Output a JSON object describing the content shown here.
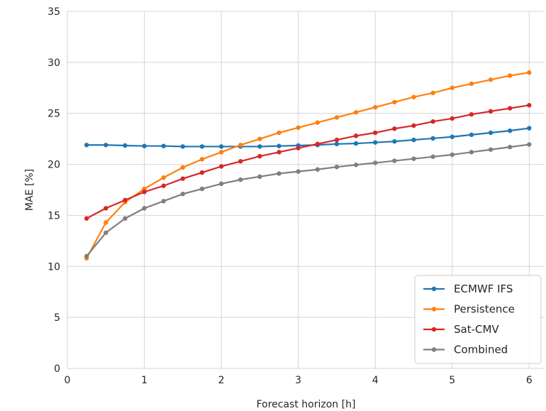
{
  "chart_data": {
    "type": "line",
    "title": "",
    "xlabel": "Forecast horizon [h]",
    "ylabel": "MAE [%]",
    "xlim": [
      0,
      6.2
    ],
    "ylim": [
      0,
      35
    ],
    "xticks": [
      0,
      1,
      2,
      3,
      4,
      5,
      6
    ],
    "yticks": [
      0,
      5,
      10,
      15,
      20,
      25,
      30,
      35
    ],
    "xtick_labels": [
      "0",
      "1",
      "2",
      "3",
      "4",
      "5",
      "6"
    ],
    "ytick_labels": [
      "0",
      "5",
      "10",
      "15",
      "20",
      "25",
      "30",
      "35"
    ],
    "grid": true,
    "legend_position": "bottom-right",
    "x": [
      0.25,
      0.5,
      0.75,
      1.0,
      1.25,
      1.5,
      1.75,
      2.0,
      2.25,
      2.5,
      2.75,
      3.0,
      3.25,
      3.5,
      3.75,
      4.0,
      4.25,
      4.5,
      4.75,
      5.0,
      5.25,
      5.5,
      5.75,
      6.0
    ],
    "series": [
      {
        "name": "ECMWF IFS",
        "color": "#1f77b4",
        "values": [
          21.9,
          21.9,
          21.85,
          21.8,
          21.8,
          21.75,
          21.75,
          21.75,
          21.75,
          21.75,
          21.8,
          21.85,
          21.9,
          22.0,
          22.05,
          22.15,
          22.25,
          22.4,
          22.55,
          22.7,
          22.9,
          23.1,
          23.3,
          23.55
        ]
      },
      {
        "name": "Persistence",
        "color": "#ff7f0e",
        "values": [
          10.8,
          14.3,
          16.3,
          17.6,
          18.7,
          19.7,
          20.5,
          21.2,
          21.9,
          22.5,
          23.1,
          23.6,
          24.1,
          24.6,
          25.1,
          25.6,
          26.1,
          26.6,
          27.0,
          27.5,
          27.9,
          28.3,
          28.7,
          29.0
        ]
      },
      {
        "name": "Sat-CMV",
        "color": "#d62728",
        "values": [
          14.7,
          15.7,
          16.5,
          17.3,
          17.9,
          18.6,
          19.2,
          19.8,
          20.3,
          20.8,
          21.2,
          21.6,
          22.0,
          22.4,
          22.8,
          23.1,
          23.5,
          23.8,
          24.2,
          24.5,
          24.9,
          25.2,
          25.5,
          25.8
        ]
      },
      {
        "name": "Combined",
        "color": "#7f7f7f",
        "values": [
          11.0,
          13.3,
          14.7,
          15.7,
          16.4,
          17.1,
          17.6,
          18.1,
          18.5,
          18.8,
          19.1,
          19.3,
          19.5,
          19.75,
          19.95,
          20.15,
          20.35,
          20.55,
          20.75,
          20.95,
          21.2,
          21.45,
          21.7,
          21.95
        ]
      }
    ]
  }
}
